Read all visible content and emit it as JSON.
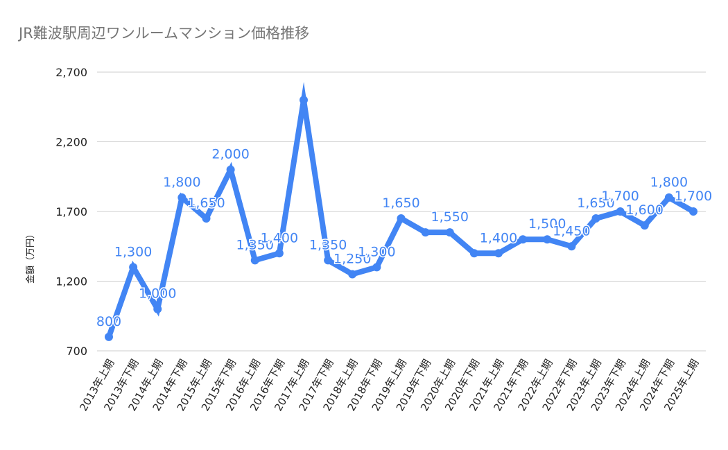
{
  "chart_data": {
    "type": "line",
    "title": "JR難波駅周辺ワンルームマンション価格推移",
    "xlabel": "",
    "ylabel": "金額（万円）",
    "ylim": [
      700,
      2700
    ],
    "yticks": [
      "700",
      "1,200",
      "1,700",
      "2,200",
      "2,700"
    ],
    "ytick_values": [
      700,
      1200,
      1700,
      2200,
      2700
    ],
    "grid": true,
    "legend": "none",
    "line_color": "#4285f4",
    "categories": [
      "2013年上期",
      "2013年下期",
      "2014年上期",
      "2014年下期",
      "2015年上期",
      "2015年下期",
      "2016年上期",
      "2016年下期",
      "2017年上期",
      "2017年下期",
      "2018年上期",
      "2018年下期",
      "2019年上期",
      "2019年下期",
      "2020年上期",
      "2020年下期",
      "2021年上期",
      "2021年下期",
      "2022年上期",
      "2022年下期",
      "2023年上期",
      "2023年下期",
      "2024年上期",
      "2024年下期",
      "2025年上期"
    ],
    "series": [
      {
        "name": "金額（万円）",
        "values": [
          800,
          1300,
          1000,
          1800,
          1650,
          2000,
          1350,
          1400,
          2500,
          1350,
          1250,
          1300,
          1650,
          1550,
          1550,
          1400,
          1400,
          1500,
          1500,
          1450,
          1650,
          1700,
          1600,
          1800,
          1700
        ],
        "labels": [
          "800",
          "1,300",
          "1,000",
          "1,800",
          "1,650",
          "2,000",
          "1,350",
          "1,400",
          "",
          "1,350",
          "1,250",
          "1,300",
          "1,650",
          "",
          "1,550",
          "",
          "1,400",
          "",
          "1,500",
          "1,450",
          "1,650",
          "1,700",
          "1,600",
          "1,800",
          "1,700"
        ]
      }
    ]
  }
}
